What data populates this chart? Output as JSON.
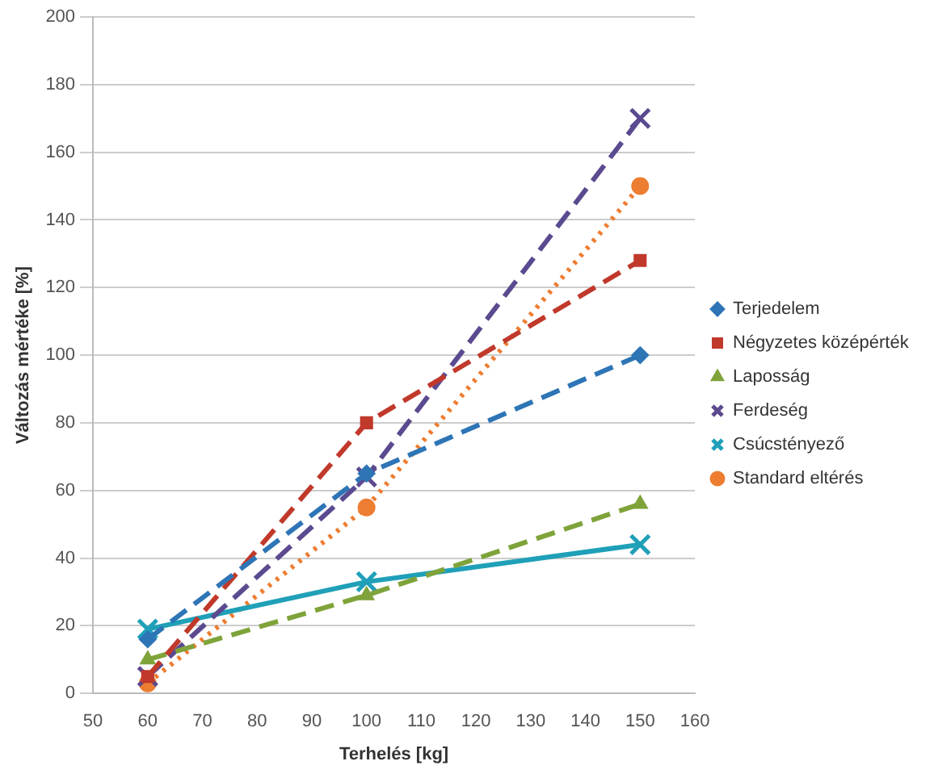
{
  "chart_data": {
    "type": "line",
    "xlabel": "Terhelés [kg]",
    "ylabel": "Változás mértéke [%]",
    "x": [
      60,
      100,
      150
    ],
    "xlim": [
      50,
      160
    ],
    "xticks": [
      50,
      60,
      70,
      80,
      90,
      100,
      110,
      120,
      130,
      140,
      150,
      160
    ],
    "ylim": [
      0,
      200
    ],
    "yticks": [
      0,
      20,
      40,
      60,
      80,
      100,
      120,
      140,
      160,
      180,
      200
    ],
    "grid": "y",
    "legend": "right",
    "series": [
      {
        "name": "Terjedelem",
        "color": "#2e75b6",
        "values": [
          16,
          65,
          100
        ],
        "marker": "diamond",
        "line_style": "dashed"
      },
      {
        "name": "Négyzetes középérték",
        "color": "#c0392b",
        "values": [
          5,
          80,
          128
        ],
        "marker": "square",
        "line_style": "dashed"
      },
      {
        "name": "Laposság",
        "color": "#7fa33a",
        "values": [
          10,
          29,
          56
        ],
        "marker": "triangle",
        "line_style": "dashed"
      },
      {
        "name": "Ferdeség",
        "color": "#5b4a8f",
        "values": [
          5,
          64,
          170
        ],
        "marker": "cross",
        "line_style": "dashed"
      },
      {
        "name": "Csúcstényező",
        "color": "#1fa0b8",
        "values": [
          19,
          33,
          44
        ],
        "marker": "cross",
        "line_style": "solid"
      },
      {
        "name": "Standard eltérés",
        "color": "#ed7d31",
        "values": [
          3,
          55,
          150
        ],
        "marker": "circle",
        "line_style": "dotted"
      }
    ]
  }
}
